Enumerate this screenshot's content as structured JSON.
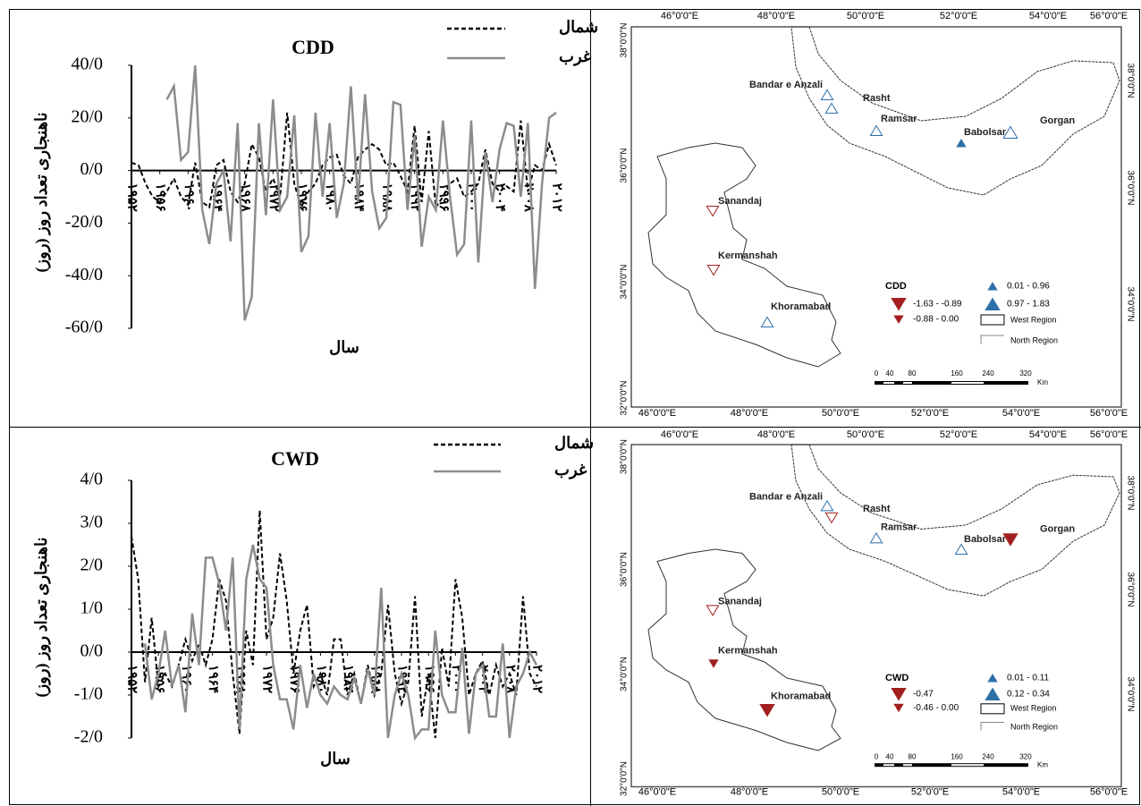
{
  "chart_data": [
    {
      "type": "line",
      "title": "CDD",
      "y_label": "ناهنجاری تعداد روز (روز)",
      "x_label": "سال",
      "x": [
        1952,
        1953,
        1954,
        1955,
        1956,
        1957,
        1958,
        1959,
        1960,
        1961,
        1962,
        1963,
        1964,
        1965,
        1966,
        1967,
        1968,
        1969,
        1970,
        1971,
        1972,
        1973,
        1974,
        1975,
        1976,
        1977,
        1978,
        1979,
        1980,
        1981,
        1982,
        1983,
        1984,
        1985,
        1986,
        1987,
        1988,
        1989,
        1990,
        1991,
        1992,
        1993,
        1994,
        1995,
        1996,
        1997,
        1998,
        1999,
        2000,
        2001,
        2002,
        2003,
        2004,
        2005,
        2006,
        2007,
        2008,
        2009,
        2010,
        2011,
        2012
      ],
      "xlim": [
        1952,
        2012
      ],
      "xticks": [
        {
          "value": 1952,
          "label": "۱۹۵۲"
        },
        {
          "value": 1956,
          "label": "۱۹۵۶"
        },
        {
          "value": 1960,
          "label": "۱۹۶۰"
        },
        {
          "value": 1964,
          "label": "۱۹۶۴"
        },
        {
          "value": 1968,
          "label": "۱۹۶۸"
        },
        {
          "value": 1972,
          "label": "۱۹۷۲"
        },
        {
          "value": 1976,
          "label": "۱۹۷۶"
        },
        {
          "value": 1980,
          "label": "۱۹۸۰"
        },
        {
          "value": 1984,
          "label": "۱۹۸۴"
        },
        {
          "value": 1988,
          "label": "۱۹۸۸"
        },
        {
          "value": 1992,
          "label": "۱۹۹۲"
        },
        {
          "value": 1996,
          "label": "۱۹۹۶"
        },
        {
          "value": 2000,
          "label": "۲۰۰۰"
        },
        {
          "value": 2004,
          "label": "۲۰۰۴"
        },
        {
          "value": 2008,
          "label": "۲۰۰۸"
        },
        {
          "value": 2012,
          "label": "۲۰۱۲"
        }
      ],
      "ylim": [
        -60,
        40
      ],
      "yticks": [
        {
          "value": 40,
          "label": "40/0"
        },
        {
          "value": 20,
          "label": "20/0"
        },
        {
          "value": 0,
          "label": "0/0"
        },
        {
          "value": -20,
          "label": "-20/0"
        },
        {
          "value": -40,
          "label": "-40/0"
        },
        {
          "value": -60,
          "label": "-60/0"
        }
      ],
      "series": [
        {
          "name": "شمال",
          "color": "#000000",
          "dashed": true,
          "values": [
            3,
            2,
            -5,
            -10,
            -12,
            -8,
            -3,
            -10,
            -13,
            3,
            -12,
            -14,
            2,
            4,
            -8,
            -12,
            -5,
            10,
            5,
            -8,
            -3,
            -10,
            22,
            -5,
            -14,
            -8,
            -5,
            2,
            5,
            6,
            -2,
            -5,
            5,
            8,
            10,
            8,
            2,
            3,
            -2,
            -8,
            17,
            -12,
            15,
            -14,
            -10,
            -5,
            -3,
            -10,
            -8,
            -5,
            8,
            -5,
            -8,
            -6,
            -8,
            19,
            -8,
            2,
            0,
            10,
            2
          ]
        },
        {
          "name": "غرب",
          "color": "#8c8c8c",
          "dashed": false,
          "values": [
            null,
            null,
            null,
            null,
            null,
            27,
            32,
            4,
            7,
            40,
            -15,
            -28,
            -5,
            0,
            -27,
            18,
            -57,
            -48,
            18,
            -17,
            27,
            -15,
            -10,
            21,
            -31,
            -25,
            22,
            -10,
            18,
            -18,
            -5,
            32,
            -12,
            29,
            -8,
            -22,
            -18,
            26,
            25,
            -15,
            13,
            -29,
            -10,
            -15,
            19,
            -10,
            -32,
            -28,
            19,
            -35,
            7,
            -12,
            8,
            18,
            17,
            -10,
            18,
            -45,
            -5,
            20,
            22
          ]
        }
      ]
    },
    {
      "type": "line",
      "title": "CWD",
      "y_label": "ناهنجاری تعداد روز (روز)",
      "x_label": "سال",
      "x": [
        1952,
        1953,
        1954,
        1955,
        1956,
        1957,
        1958,
        1959,
        1960,
        1961,
        1962,
        1963,
        1964,
        1965,
        1966,
        1967,
        1968,
        1969,
        1970,
        1971,
        1972,
        1973,
        1974,
        1975,
        1976,
        1977,
        1978,
        1979,
        1980,
        1981,
        1982,
        1983,
        1984,
        1985,
        1986,
        1987,
        1988,
        1989,
        1990,
        1991,
        1992,
        1993,
        1994,
        1995,
        1996,
        1997,
        1998,
        1999,
        2000,
        2001,
        2002,
        2003,
        2004,
        2005,
        2006,
        2007,
        2008,
        2009,
        2010,
        2011,
        2012
      ],
      "xlim": [
        1952,
        2012
      ],
      "xticks": [
        {
          "value": 1952,
          "label": "۱۹۵۲"
        },
        {
          "value": 1956,
          "label": "۱۹۵۶"
        },
        {
          "value": 1960,
          "label": "۱۹۶۰"
        },
        {
          "value": 1964,
          "label": "۱۹۶۴"
        },
        {
          "value": 1968,
          "label": "۱۹۶۸"
        },
        {
          "value": 1972,
          "label": "۱۹۷۲"
        },
        {
          "value": 1976,
          "label": "۱۹۷۶"
        },
        {
          "value": 1980,
          "label": "۱۹۸۰"
        },
        {
          "value": 1984,
          "label": "۱۹۸۴"
        },
        {
          "value": 1988,
          "label": "۱۹۸۸"
        },
        {
          "value": 1992,
          "label": "۱۹۹۲"
        },
        {
          "value": 1996,
          "label": "۱۹۹۶"
        },
        {
          "value": 2000,
          "label": "۲۰۰۰"
        },
        {
          "value": 2004,
          "label": "۲۰۰۴"
        },
        {
          "value": 2008,
          "label": "۲۰۰۸"
        },
        {
          "value": 2012,
          "label": "۲۰۱۲"
        }
      ],
      "ylim": [
        -2,
        4
      ],
      "yticks": [
        {
          "value": 4,
          "label": "4/0"
        },
        {
          "value": 3,
          "label": "3/0"
        },
        {
          "value": 2,
          "label": "2/0"
        },
        {
          "value": 1,
          "label": "1/0"
        },
        {
          "value": 0,
          "label": "0/0"
        },
        {
          "value": -1,
          "label": "-1/0"
        },
        {
          "value": -2,
          "label": "-2/0"
        }
      ],
      "series": [
        {
          "name": "شمال",
          "color": "#000000",
          "dashed": true,
          "values": [
            2.7,
            1.7,
            -0.7,
            0.8,
            -0.8,
            -0.5,
            -0.8,
            -0.3,
            0.3,
            -0.2,
            0.2,
            -0.3,
            0.3,
            1.7,
            1.2,
            -0.5,
            -1.9,
            0.5,
            -0.3,
            3.3,
            0.3,
            0.8,
            2.3,
            1.2,
            -0.5,
            0.5,
            1.1,
            -0.8,
            -0.5,
            -1.0,
            0.3,
            0.3,
            -1.0,
            -0.5,
            -1.2,
            -0.3,
            -1.0,
            -0.5,
            1.1,
            -0.5,
            -1.2,
            -0.7,
            1.3,
            -1.5,
            -0.5,
            -2.0,
            0.1,
            -0.8,
            1.7,
            0.8,
            -1.0,
            -0.5,
            -0.2,
            -1.0,
            -0.3,
            -0.8,
            -0.5,
            -1.0,
            1.3,
            -0.5,
            -0.8
          ]
        },
        {
          "name": "غرب",
          "color": "#8c8c8c",
          "dashed": false,
          "values": [
            null,
            null,
            0.2,
            -1.1,
            -0.5,
            0.5,
            -0.8,
            -0.3,
            -1.4,
            0.9,
            -0.3,
            2.2,
            2.2,
            1.6,
            0.5,
            2.2,
            -1.8,
            1.7,
            2.5,
            1.7,
            1.5,
            -0.3,
            -1.1,
            -1.1,
            -1.8,
            -0.3,
            -1.3,
            -0.5,
            -1.0,
            -1.2,
            -0.8,
            -1.0,
            -1.1,
            -0.6,
            -1.2,
            -0.4,
            -1.0,
            1.5,
            -2.0,
            -1.0,
            -0.5,
            -1.0,
            -2.0,
            -1.8,
            -1.8,
            0.5,
            -1.0,
            -1.4,
            -1.4,
            0.1,
            -1.9,
            -0.5,
            -0.3,
            -1.5,
            -1.5,
            0.2,
            -2.0,
            -0.8,
            -0.5,
            0.0,
            -0.3
          ]
        }
      ]
    }
  ],
  "maps": [
    {
      "lon_labels": [
        "46°0'0\"E",
        "48°0'0\"E",
        "50°0'0\"E",
        "52°0'0\"E",
        "54°0'0\"E",
        "56°0'0\"E"
      ],
      "lat_labels": [
        "38°0'0\"N",
        "36°0'0\"N",
        "34°0'0\"N",
        "32°0'0\"N"
      ],
      "stations": [
        "Bandar e Anzali",
        "Rasht",
        "Ramsar",
        "Babolsar",
        "Gorgan",
        "Sanandaj",
        "Kermanshah",
        "Khoramabad"
      ],
      "legend": {
        "title": "CDD",
        "items": [
          "-1.63 - -0.89",
          "-0.88 - 0.00",
          "0.01 - 0.96",
          "0.97 - 1.83",
          "West Region",
          "North Region"
        ]
      },
      "scale_labels": [
        "0",
        "40",
        "80",
        "160",
        "240",
        "320",
        "Km"
      ]
    },
    {
      "lon_labels": [
        "46°0'0\"E",
        "48°0'0\"E",
        "50°0'0\"E",
        "52°0'0\"E",
        "54°0'0\"E",
        "56°0'0\"E"
      ],
      "lat_labels": [
        "38°0'0\"N",
        "36°0'0\"N",
        "34°0'0\"N",
        "32°0'0\"N"
      ],
      "stations": [
        "Bandar e Anzali",
        "Rasht",
        "Ramsar",
        "Babolsar",
        "Gorgan",
        "Sanandaj",
        "Kermanshah",
        "Khoramabad"
      ],
      "legend": {
        "title": "CWD",
        "items": [
          "-0.47",
          "-0.46 - 0.00",
          "0.01 - 0.11",
          "0.12 - 0.34",
          "West Region",
          "North Region"
        ]
      },
      "scale_labels": [
        "0",
        "40",
        "80",
        "160",
        "240",
        "320",
        "Km"
      ]
    }
  ]
}
